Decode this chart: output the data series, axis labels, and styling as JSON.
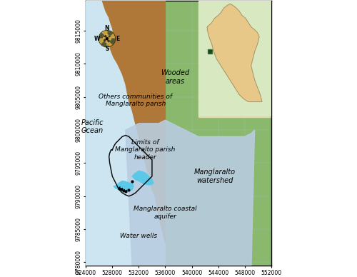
{
  "xlim": [
    524000,
    552000
  ],
  "ylim": [
    9779500,
    9819500
  ],
  "xticks": [
    524000,
    528000,
    532000,
    536000,
    540000,
    544000,
    548000,
    552000
  ],
  "yticks": [
    9780000,
    9785000,
    9790000,
    9795000,
    9800000,
    9805000,
    9810000,
    9815000
  ],
  "bg_beige": "#ede0b0",
  "ocean_color": "#cce5f0",
  "wooded_color": "#8ab96e",
  "brown_color": "#b07838",
  "watershed_color": "#b8cde0",
  "aquifer_color": "#5bc8e8",
  "grid_color": "#aabbcc",
  "label_wooded": "Wooded\nareas",
  "label_communities": "Others communities of\nManglaralto parish",
  "label_limits": "Limits of\nManglaralto parish\nheader",
  "label_watershed": "Manglaralto\nwatershed",
  "label_aquifer": "Manglaralto coastal\naquifer",
  "label_ocean": "Pacific\nOcean",
  "label_waterwells": "Water wells",
  "inset_ocean": "#cce5f0",
  "inset_land_bg": "#d8e8c0",
  "inset_ecuador": "#e8c888",
  "inset_green": "#a0c878"
}
